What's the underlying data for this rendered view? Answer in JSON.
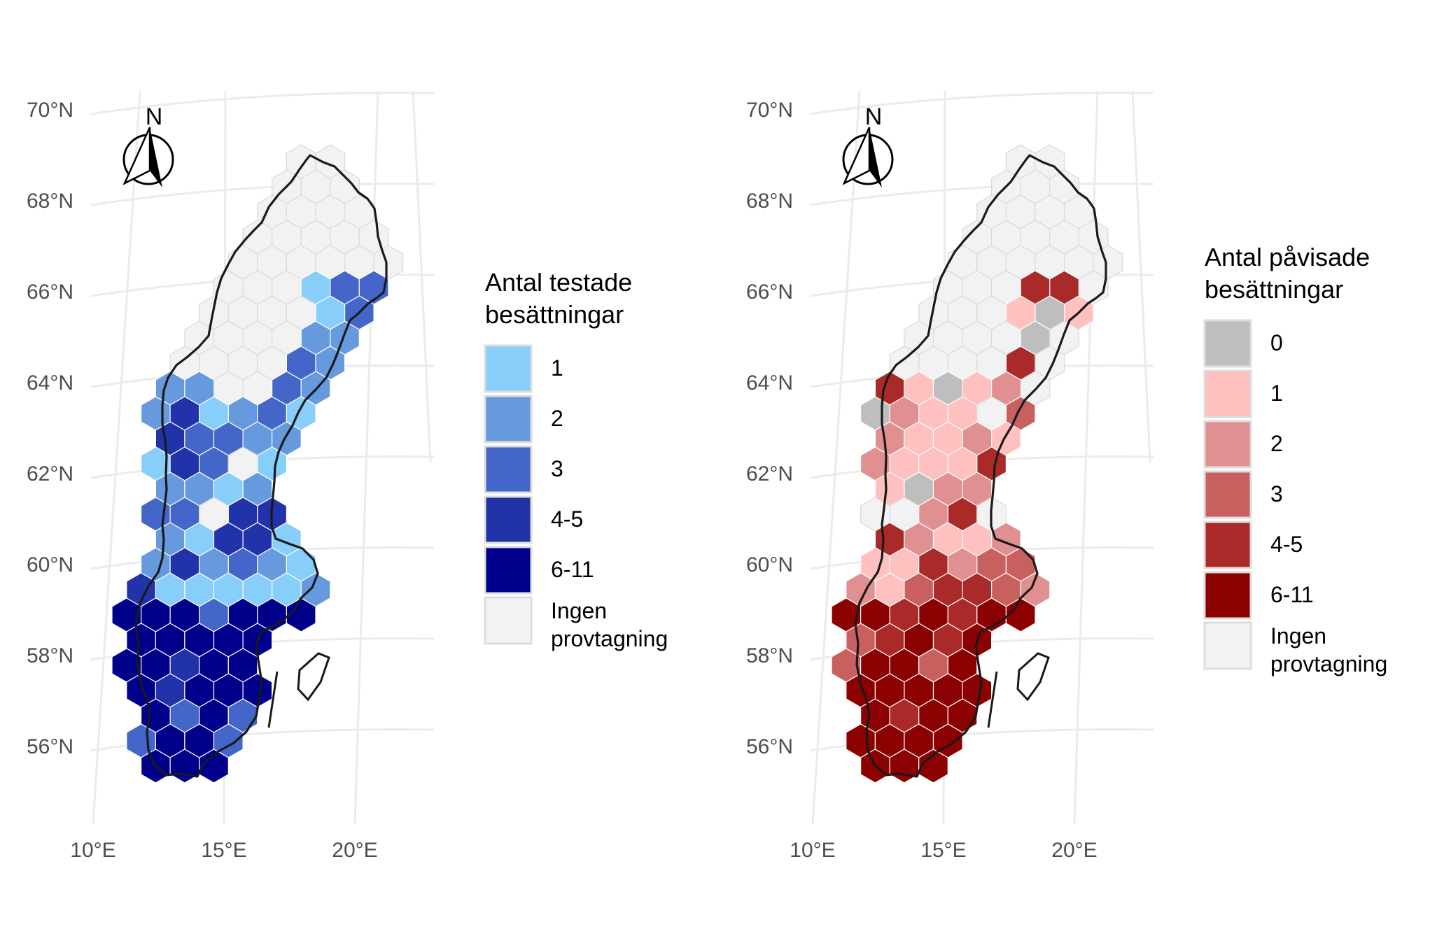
{
  "axes": {
    "lat_labels": [
      "70°N",
      "68°N",
      "66°N",
      "64°N",
      "62°N",
      "60°N",
      "58°N",
      "56°N"
    ],
    "lon_labels": [
      "10°E",
      "15°E",
      "20°E"
    ]
  },
  "north_arrow": {
    "label": "N"
  },
  "grid_color": "#ebebeb",
  "outline_color": "#1a1a1a",
  "hex_border_color": "#d9d9d9",
  "panels": [
    {
      "id": "tested",
      "legend": {
        "title_lines": [
          "Antal testade",
          "besättningar"
        ],
        "items": [
          {
            "label": "1",
            "color": "#87cefa"
          },
          {
            "label": "2",
            "color": "#6699dd"
          },
          {
            "label": "3",
            "color": "#4466c8"
          },
          {
            "label": "4-5",
            "color": "#2233aa"
          },
          {
            "label": "6-11",
            "color": "#00008b"
          },
          {
            "label": "Ingen provtagning",
            "lines": [
              "Ingen",
              "provtagning"
            ],
            "color": "#f2f2f2"
          }
        ]
      }
    },
    {
      "id": "detected",
      "legend": {
        "title_lines": [
          "Antal påvisade",
          "besättningar"
        ],
        "items": [
          {
            "label": "0",
            "color": "#bebebe"
          },
          {
            "label": "1",
            "color": "#ffc0c0"
          },
          {
            "label": "2",
            "color": "#e09090"
          },
          {
            "label": "3",
            "color": "#c86060"
          },
          {
            "label": "4-5",
            "color": "#aa2a2a"
          },
          {
            "label": "6-11",
            "color": "#8b0000"
          },
          {
            "label": "Ingen provtagning",
            "lines": [
              "Ingen",
              "provtagning"
            ],
            "color": "#f2f2f2"
          }
        ]
      }
    }
  ]
}
